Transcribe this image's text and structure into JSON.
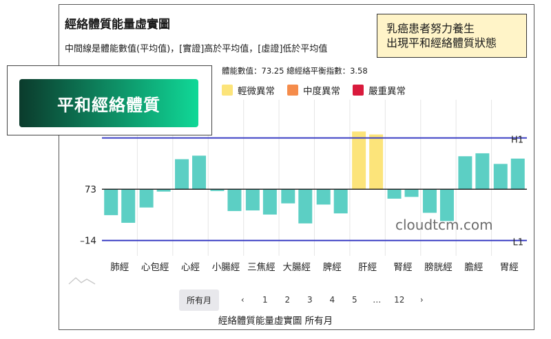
{
  "header": {
    "title": "經絡體質能量虛實圖",
    "subtitle": "中間線是體能數值(平均值)，[實證]高於平均值，[虛證]低於平均值",
    "stats": "體能數值：73.25 總經絡平衡指數：3.58"
  },
  "note": {
    "line1": "乳癌患者努力養生",
    "line2": "出現平和經絡體質狀態"
  },
  "overlay": {
    "label": "平和經絡體質"
  },
  "watermark": "cloudtcm.com",
  "pager": {
    "current": "所有月",
    "prev": "‹",
    "pages": [
      "1",
      "2",
      "3",
      "4",
      "5",
      "…",
      "12"
    ],
    "next": "›"
  },
  "caption": "經絡體質能量虛實圖 所有月",
  "colors": {
    "bar": "#5ccfc4",
    "highlight": "#fce47a",
    "reference_line": "#3a3fc4",
    "mild": "#fce47a",
    "moderate": "#f58c4b",
    "severe": "#d91a3c"
  },
  "chart_data": {
    "type": "bar",
    "legend": [
      {
        "name": "輕微異常",
        "color": "#fce47a"
      },
      {
        "name": "中度異常",
        "color": "#f58c4b"
      },
      {
        "name": "嚴重異常",
        "color": "#d91a3c"
      }
    ],
    "legend_position": "top",
    "categories": [
      "肺經",
      "心包經",
      "心經",
      "小腸經",
      "三焦經",
      "大腸經",
      "脾經",
      "肝經",
      "腎經",
      "膀胱經",
      "膽經",
      "胃經"
    ],
    "baseline": 73,
    "series": [
      {
        "values": [
          29,
          42,
          124,
          70,
          37,
          49,
          47,
          171,
          57,
          33,
          129,
          116
        ]
      },
      {
        "values": [
          16,
          69,
          130,
          36,
          30,
          15,
          32,
          166,
          60,
          19,
          134,
          125
        ]
      }
    ],
    "highlight_categories": [
      "肝經"
    ],
    "reference_lines": [
      {
        "label": "H1",
        "value": 160
      },
      {
        "label": "L1",
        "value": -14
      }
    ],
    "y_tick_labels": [
      {
        "label": "73",
        "value": 73
      },
      {
        "label": "–14",
        "value": -14
      }
    ],
    "ylim": [
      -40,
      225
    ],
    "grid": "vertical"
  }
}
